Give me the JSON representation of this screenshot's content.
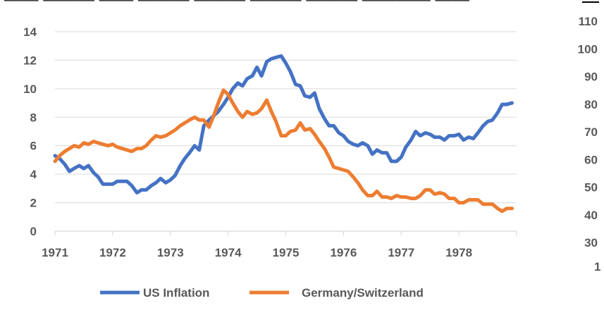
{
  "title_fragment": "—— ——— —— ——— ——— ——— ——— ———— ——",
  "chart_data": {
    "type": "line",
    "x_ticks": [
      "1971",
      "1972",
      "1973",
      "1974",
      "1975",
      "1976",
      "1977",
      "1978"
    ],
    "xlim": [
      1971,
      1979
    ],
    "ylim": [
      0,
      14
    ],
    "y_ticks": [
      "0",
      "2",
      "4",
      "6",
      "8",
      "10",
      "12",
      "14"
    ],
    "right_axis": {
      "ticks": [
        "30",
        "40",
        "50",
        "60",
        "70",
        "80",
        "90",
        "100",
        "110"
      ],
      "ylim": [
        30,
        110
      ],
      "bottom_fragment": "1"
    },
    "grid": true,
    "legend_position": "bottom",
    "series": [
      {
        "name": "US Inflation",
        "color": "#4472C4",
        "points": [
          [
            1971.0,
            5.3
          ],
          [
            1971.08,
            5.1
          ],
          [
            1971.17,
            4.7
          ],
          [
            1971.25,
            4.2
          ],
          [
            1971.33,
            4.4
          ],
          [
            1971.42,
            4.6
          ],
          [
            1971.5,
            4.4
          ],
          [
            1971.58,
            4.6
          ],
          [
            1971.67,
            4.1
          ],
          [
            1971.75,
            3.8
          ],
          [
            1971.83,
            3.3
          ],
          [
            1971.92,
            3.3
          ],
          [
            1972.0,
            3.3
          ],
          [
            1972.08,
            3.5
          ],
          [
            1972.17,
            3.5
          ],
          [
            1972.25,
            3.5
          ],
          [
            1972.33,
            3.2
          ],
          [
            1972.42,
            2.7
          ],
          [
            1972.5,
            2.9
          ],
          [
            1972.58,
            2.9
          ],
          [
            1972.67,
            3.2
          ],
          [
            1972.75,
            3.4
          ],
          [
            1972.83,
            3.7
          ],
          [
            1972.92,
            3.4
          ],
          [
            1973.0,
            3.6
          ],
          [
            1973.08,
            3.9
          ],
          [
            1973.17,
            4.6
          ],
          [
            1973.25,
            5.1
          ],
          [
            1973.33,
            5.5
          ],
          [
            1973.42,
            6.0
          ],
          [
            1973.5,
            5.7
          ],
          [
            1973.58,
            7.4
          ],
          [
            1973.67,
            7.8
          ],
          [
            1973.75,
            8.1
          ],
          [
            1973.83,
            8.4
          ],
          [
            1973.92,
            8.9
          ],
          [
            1974.0,
            9.4
          ],
          [
            1974.08,
            10.0
          ],
          [
            1974.17,
            10.4
          ],
          [
            1974.25,
            10.2
          ],
          [
            1974.33,
            10.7
          ],
          [
            1974.42,
            10.9
          ],
          [
            1974.5,
            11.5
          ],
          [
            1974.58,
            10.9
          ],
          [
            1974.67,
            11.9
          ],
          [
            1974.75,
            12.1
          ],
          [
            1974.83,
            12.2
          ],
          [
            1974.92,
            12.3
          ],
          [
            1975.0,
            11.8
          ],
          [
            1975.08,
            11.2
          ],
          [
            1975.17,
            10.3
          ],
          [
            1975.25,
            10.2
          ],
          [
            1975.33,
            9.5
          ],
          [
            1975.42,
            9.4
          ],
          [
            1975.5,
            9.7
          ],
          [
            1975.58,
            8.6
          ],
          [
            1975.67,
            7.9
          ],
          [
            1975.75,
            7.4
          ],
          [
            1975.83,
            7.4
          ],
          [
            1975.92,
            6.9
          ],
          [
            1976.0,
            6.7
          ],
          [
            1976.08,
            6.3
          ],
          [
            1976.17,
            6.1
          ],
          [
            1976.25,
            6.0
          ],
          [
            1976.33,
            6.2
          ],
          [
            1976.42,
            6.0
          ],
          [
            1976.5,
            5.4
          ],
          [
            1976.58,
            5.7
          ],
          [
            1976.67,
            5.5
          ],
          [
            1976.75,
            5.5
          ],
          [
            1976.83,
            4.9
          ],
          [
            1976.92,
            4.9
          ],
          [
            1977.0,
            5.2
          ],
          [
            1977.08,
            5.9
          ],
          [
            1977.17,
            6.4
          ],
          [
            1977.25,
            7.0
          ],
          [
            1977.33,
            6.7
          ],
          [
            1977.42,
            6.9
          ],
          [
            1977.5,
            6.8
          ],
          [
            1977.58,
            6.6
          ],
          [
            1977.67,
            6.6
          ],
          [
            1977.75,
            6.4
          ],
          [
            1977.83,
            6.7
          ],
          [
            1977.92,
            6.7
          ],
          [
            1978.0,
            6.8
          ],
          [
            1978.08,
            6.4
          ],
          [
            1978.17,
            6.6
          ],
          [
            1978.25,
            6.5
          ],
          [
            1978.33,
            6.9
          ],
          [
            1978.42,
            7.4
          ],
          [
            1978.5,
            7.7
          ],
          [
            1978.58,
            7.8
          ],
          [
            1978.67,
            8.3
          ],
          [
            1978.75,
            8.9
          ],
          [
            1978.83,
            8.9
          ],
          [
            1978.92,
            9.0
          ]
        ]
      },
      {
        "name": "Germany/Switzerland",
        "color": "#ED7D31",
        "points": [
          [
            1971.0,
            4.9
          ],
          [
            1971.08,
            5.3
          ],
          [
            1971.17,
            5.6
          ],
          [
            1971.25,
            5.8
          ],
          [
            1971.33,
            6.0
          ],
          [
            1971.42,
            5.9
          ],
          [
            1971.5,
            6.2
          ],
          [
            1971.58,
            6.1
          ],
          [
            1971.67,
            6.3
          ],
          [
            1971.75,
            6.2
          ],
          [
            1971.83,
            6.1
          ],
          [
            1971.92,
            6.0
          ],
          [
            1972.0,
            6.1
          ],
          [
            1972.08,
            5.9
          ],
          [
            1972.17,
            5.8
          ],
          [
            1972.25,
            5.7
          ],
          [
            1972.33,
            5.6
          ],
          [
            1972.42,
            5.8
          ],
          [
            1972.5,
            5.8
          ],
          [
            1972.58,
            6.0
          ],
          [
            1972.67,
            6.4
          ],
          [
            1972.75,
            6.7
          ],
          [
            1972.83,
            6.6
          ],
          [
            1972.92,
            6.7
          ],
          [
            1973.0,
            6.9
          ],
          [
            1973.08,
            7.1
          ],
          [
            1973.17,
            7.4
          ],
          [
            1973.25,
            7.6
          ],
          [
            1973.33,
            7.8
          ],
          [
            1973.42,
            8.0
          ],
          [
            1973.5,
            7.8
          ],
          [
            1973.58,
            7.8
          ],
          [
            1973.67,
            7.3
          ],
          [
            1973.75,
            8.1
          ],
          [
            1973.83,
            9.0
          ],
          [
            1973.92,
            9.9
          ],
          [
            1974.0,
            9.6
          ],
          [
            1974.08,
            9.0
          ],
          [
            1974.17,
            8.4
          ],
          [
            1974.25,
            8.0
          ],
          [
            1974.33,
            8.4
          ],
          [
            1974.42,
            8.2
          ],
          [
            1974.5,
            8.3
          ],
          [
            1974.58,
            8.6
          ],
          [
            1974.67,
            9.2
          ],
          [
            1974.75,
            8.4
          ],
          [
            1974.83,
            7.7
          ],
          [
            1974.92,
            6.7
          ],
          [
            1975.0,
            6.7
          ],
          [
            1975.08,
            7.0
          ],
          [
            1975.17,
            7.1
          ],
          [
            1975.25,
            7.6
          ],
          [
            1975.33,
            7.1
          ],
          [
            1975.42,
            7.2
          ],
          [
            1975.5,
            6.8
          ],
          [
            1975.58,
            6.3
          ],
          [
            1975.67,
            5.8
          ],
          [
            1975.75,
            5.2
          ],
          [
            1975.83,
            4.5
          ],
          [
            1975.92,
            4.4
          ],
          [
            1976.0,
            4.3
          ],
          [
            1976.08,
            4.2
          ],
          [
            1976.17,
            3.8
          ],
          [
            1976.25,
            3.4
          ],
          [
            1976.33,
            2.9
          ],
          [
            1976.42,
            2.5
          ],
          [
            1976.5,
            2.5
          ],
          [
            1976.58,
            2.8
          ],
          [
            1976.67,
            2.4
          ],
          [
            1976.75,
            2.4
          ],
          [
            1976.83,
            2.3
          ],
          [
            1976.92,
            2.5
          ],
          [
            1977.0,
            2.4
          ],
          [
            1977.08,
            2.4
          ],
          [
            1977.17,
            2.3
          ],
          [
            1977.25,
            2.3
          ],
          [
            1977.33,
            2.5
          ],
          [
            1977.42,
            2.9
          ],
          [
            1977.5,
            2.9
          ],
          [
            1977.58,
            2.6
          ],
          [
            1977.67,
            2.7
          ],
          [
            1977.75,
            2.6
          ],
          [
            1977.83,
            2.3
          ],
          [
            1977.92,
            2.3
          ],
          [
            1978.0,
            2.0
          ],
          [
            1978.08,
            2.0
          ],
          [
            1978.17,
            2.2
          ],
          [
            1978.25,
            2.2
          ],
          [
            1978.33,
            2.2
          ],
          [
            1978.42,
            1.9
          ],
          [
            1978.5,
            1.9
          ],
          [
            1978.58,
            1.9
          ],
          [
            1978.67,
            1.6
          ],
          [
            1978.75,
            1.4
          ],
          [
            1978.83,
            1.6
          ],
          [
            1978.92,
            1.6
          ]
        ]
      }
    ]
  }
}
